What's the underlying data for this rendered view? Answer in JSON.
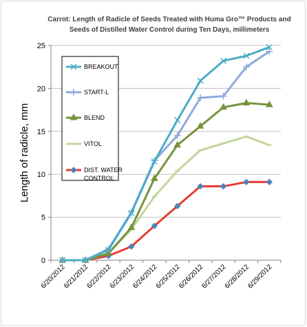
{
  "chart_data": {
    "type": "line",
    "title_line1": "Carrot: Length of Radicle  of Seeds Treated  with Huma Gro™ Products and",
    "title_line2": "Seeds of Distilled Water Control during Ten Days, millimeters",
    "ylabel": "Length of radicle, mm",
    "xlabel": "",
    "ylim": [
      0,
      25
    ],
    "yticks": [
      "0",
      "5",
      "10",
      "15",
      "20",
      "25"
    ],
    "categories": [
      "6/20/2012",
      "6/21/2012",
      "6/22/2012",
      "6/23/2012",
      "6/24/2012",
      "6/25/2012",
      "6/26/2012",
      "6/27/2012",
      "6/28/2012",
      "6/29/2012"
    ],
    "grid": true,
    "legend_position": "left",
    "series": [
      {
        "name": "BREAKOUT",
        "color": "#4BACC6",
        "marker": "x-star",
        "values": [
          0,
          0,
          1.2,
          5.5,
          11.5,
          16.3,
          20.9,
          23.2,
          23.8,
          24.8
        ]
      },
      {
        "name": "START-L",
        "color": "#8EA9DB",
        "marker": "plus",
        "values": [
          0,
          0,
          1.3,
          5.6,
          11.6,
          14.5,
          18.9,
          19.1,
          22.5,
          24.3
        ]
      },
      {
        "name": "BLEND",
        "color": "#77933C",
        "marker": "triangle",
        "values": [
          0,
          0,
          0.8,
          3.8,
          9.5,
          13.4,
          15.6,
          17.8,
          18.3,
          18.1
        ]
      },
      {
        "name": "VITOL",
        "color": "#C3D69B",
        "marker": "dash",
        "values": [
          0,
          0,
          0.8,
          3.6,
          7.4,
          10.4,
          12.8,
          13.6,
          14.4,
          13.4
        ]
      },
      {
        "name": "DIST. WATER\nCONTROL",
        "legend_lines": [
          "DIST. WATER",
          "CONTROL"
        ],
        "color": "#E53B30",
        "marker": "diamond",
        "values": [
          0,
          0,
          0.5,
          1.6,
          4.0,
          6.3,
          8.6,
          8.6,
          9.1,
          9.1
        ]
      }
    ]
  }
}
